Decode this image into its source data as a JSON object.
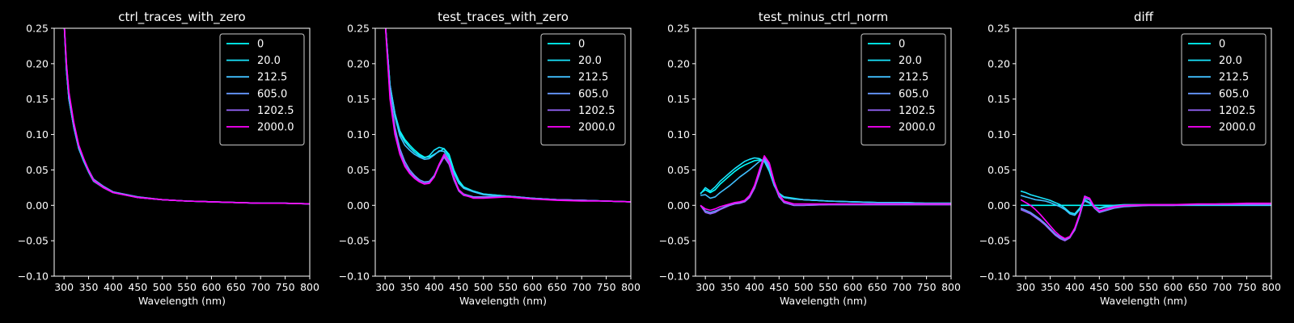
{
  "figure": {
    "background": "#000000",
    "foreground": "#ffffff"
  },
  "series_style": {
    "names": [
      "0",
      "20.0",
      "212.5",
      "605.0",
      "1202.5",
      "2000.0"
    ],
    "colors": [
      "#00ffff",
      "#19e6ff",
      "#40bfff",
      "#6699ff",
      "#9966ff",
      "#ff00ff"
    ]
  },
  "chart_data": [
    {
      "type": "line",
      "title": "ctrl_traces_with_zero",
      "xlabel": "Wavelength (nm)",
      "ylabel": "",
      "xlim": [
        280,
        800
      ],
      "ylim": [
        -0.1,
        0.25
      ],
      "xticks": [
        300,
        350,
        400,
        450,
        500,
        550,
        600,
        650,
        700,
        750,
        800
      ],
      "yticks": [
        -0.1,
        -0.05,
        0.0,
        0.05,
        0.1,
        0.15,
        0.2,
        0.25
      ],
      "ytick_labels": [
        "−0.10",
        "−0.05",
        "0.00",
        "0.05",
        "0.10",
        "0.15",
        "0.20",
        "0.25"
      ],
      "legend": "top-right",
      "x": [
        300,
        305,
        310,
        320,
        330,
        340,
        350,
        360,
        380,
        400,
        450,
        500,
        550,
        600,
        650,
        700,
        750,
        800
      ],
      "series": [
        {
          "name": "0",
          "values": [
            0.26,
            0.19,
            0.15,
            0.11,
            0.08,
            0.063,
            0.048,
            0.035,
            0.025,
            0.018,
            0.011,
            0.008,
            0.006,
            0.005,
            0.004,
            0.003,
            0.003,
            0.002
          ]
        },
        {
          "name": "20.0",
          "values": [
            0.26,
            0.19,
            0.15,
            0.11,
            0.08,
            0.062,
            0.047,
            0.034,
            0.025,
            0.018,
            0.011,
            0.008,
            0.006,
            0.005,
            0.004,
            0.003,
            0.003,
            0.002
          ]
        },
        {
          "name": "212.5",
          "values": [
            0.26,
            0.19,
            0.15,
            0.11,
            0.08,
            0.063,
            0.048,
            0.036,
            0.026,
            0.019,
            0.012,
            0.008,
            0.006,
            0.005,
            0.004,
            0.003,
            0.003,
            0.002
          ]
        },
        {
          "name": "605.0",
          "values": [
            0.26,
            0.195,
            0.155,
            0.112,
            0.082,
            0.065,
            0.05,
            0.037,
            0.027,
            0.019,
            0.012,
            0.008,
            0.006,
            0.005,
            0.004,
            0.003,
            0.003,
            0.002
          ]
        },
        {
          "name": "1202.5",
          "values": [
            0.26,
            0.2,
            0.158,
            0.115,
            0.084,
            0.066,
            0.05,
            0.036,
            0.026,
            0.018,
            0.011,
            0.008,
            0.006,
            0.005,
            0.004,
            0.003,
            0.003,
            0.002
          ]
        },
        {
          "name": "2000.0",
          "values": [
            0.26,
            0.2,
            0.16,
            0.117,
            0.085,
            0.066,
            0.049,
            0.035,
            0.025,
            0.018,
            0.011,
            0.008,
            0.006,
            0.005,
            0.004,
            0.003,
            0.003,
            0.002
          ]
        }
      ]
    },
    {
      "type": "line",
      "title": "test_traces_with_zero",
      "xlabel": "Wavelength (nm)",
      "ylabel": "",
      "xlim": [
        280,
        800
      ],
      "ylim": [
        -0.1,
        0.25
      ],
      "xticks": [
        300,
        350,
        400,
        450,
        500,
        550,
        600,
        650,
        700,
        750,
        800
      ],
      "yticks": [
        -0.1,
        -0.05,
        0.0,
        0.05,
        0.1,
        0.15,
        0.2,
        0.25
      ],
      "ytick_labels": [
        "−0.10",
        "−0.05",
        "0.00",
        "0.05",
        "0.10",
        "0.15",
        "0.20",
        "0.25"
      ],
      "legend": "top-right",
      "x": [
        300,
        310,
        320,
        330,
        340,
        350,
        360,
        370,
        380,
        390,
        400,
        410,
        420,
        430,
        440,
        450,
        460,
        480,
        500,
        550,
        600,
        650,
        700,
        750,
        800
      ],
      "series": [
        {
          "name": "0",
          "values": [
            0.26,
            0.17,
            0.13,
            0.105,
            0.093,
            0.085,
            0.078,
            0.072,
            0.068,
            0.068,
            0.072,
            0.076,
            0.08,
            0.072,
            0.05,
            0.035,
            0.026,
            0.02,
            0.016,
            0.013,
            0.01,
            0.008,
            0.007,
            0.006,
            0.005
          ]
        },
        {
          "name": "20.0",
          "values": [
            0.26,
            0.17,
            0.13,
            0.102,
            0.09,
            0.082,
            0.075,
            0.07,
            0.067,
            0.07,
            0.078,
            0.082,
            0.08,
            0.068,
            0.046,
            0.032,
            0.025,
            0.02,
            0.016,
            0.013,
            0.01,
            0.008,
            0.007,
            0.006,
            0.005
          ]
        },
        {
          "name": "212.5",
          "values": [
            0.26,
            0.17,
            0.125,
            0.098,
            0.085,
            0.078,
            0.072,
            0.068,
            0.065,
            0.066,
            0.071,
            0.077,
            0.076,
            0.064,
            0.045,
            0.031,
            0.024,
            0.019,
            0.015,
            0.012,
            0.01,
            0.008,
            0.007,
            0.006,
            0.005
          ]
        },
        {
          "name": "605.0",
          "values": [
            0.26,
            0.16,
            0.11,
            0.08,
            0.062,
            0.05,
            0.042,
            0.036,
            0.033,
            0.034,
            0.042,
            0.058,
            0.07,
            0.06,
            0.038,
            0.022,
            0.016,
            0.012,
            0.012,
            0.013,
            0.01,
            0.008,
            0.007,
            0.006,
            0.005
          ]
        },
        {
          "name": "1202.5",
          "values": [
            0.26,
            0.155,
            0.105,
            0.075,
            0.058,
            0.047,
            0.04,
            0.034,
            0.031,
            0.032,
            0.04,
            0.056,
            0.068,
            0.058,
            0.036,
            0.02,
            0.014,
            0.011,
            0.011,
            0.012,
            0.009,
            0.008,
            0.007,
            0.006,
            0.005
          ]
        },
        {
          "name": "2000.0",
          "values": [
            0.26,
            0.15,
            0.1,
            0.072,
            0.055,
            0.045,
            0.038,
            0.033,
            0.03,
            0.031,
            0.04,
            0.058,
            0.072,
            0.062,
            0.04,
            0.022,
            0.015,
            0.01,
            0.01,
            0.012,
            0.009,
            0.007,
            0.006,
            0.006,
            0.005
          ]
        }
      ]
    },
    {
      "type": "line",
      "title": "test_minus_ctrl_norm",
      "xlabel": "Wavelength (nm)",
      "ylabel": "",
      "xlim": [
        280,
        800
      ],
      "ylim": [
        -0.1,
        0.25
      ],
      "xticks": [
        300,
        350,
        400,
        450,
        500,
        550,
        600,
        650,
        700,
        750,
        800
      ],
      "yticks": [
        -0.1,
        -0.05,
        0.0,
        0.05,
        0.1,
        0.15,
        0.2,
        0.25
      ],
      "ytick_labels": [
        "−0.10",
        "−0.05",
        "0.00",
        "0.05",
        "0.10",
        "0.15",
        "0.20",
        "0.25"
      ],
      "legend": "top-right",
      "x": [
        290,
        300,
        310,
        320,
        330,
        340,
        350,
        360,
        370,
        380,
        390,
        400,
        410,
        420,
        430,
        440,
        450,
        460,
        480,
        500,
        550,
        600,
        650,
        700,
        750,
        800
      ],
      "series": [
        {
          "name": "0",
          "values": [
            0.017,
            0.022,
            0.018,
            0.022,
            0.03,
            0.036,
            0.042,
            0.048,
            0.053,
            0.057,
            0.06,
            0.063,
            0.064,
            0.062,
            0.05,
            0.03,
            0.017,
            0.012,
            0.01,
            0.008,
            0.006,
            0.005,
            0.004,
            0.004,
            0.003,
            0.003
          ]
        },
        {
          "name": "20.0",
          "values": [
            0.016,
            0.025,
            0.02,
            0.026,
            0.034,
            0.04,
            0.046,
            0.052,
            0.057,
            0.062,
            0.065,
            0.067,
            0.066,
            0.062,
            0.048,
            0.028,
            0.015,
            0.011,
            0.009,
            0.008,
            0.006,
            0.005,
            0.004,
            0.004,
            0.003,
            0.003
          ]
        },
        {
          "name": "212.5",
          "values": [
            0.014,
            0.015,
            0.01,
            0.012,
            0.018,
            0.023,
            0.028,
            0.034,
            0.04,
            0.045,
            0.05,
            0.056,
            0.062,
            0.064,
            0.052,
            0.03,
            0.016,
            0.011,
            0.009,
            0.008,
            0.006,
            0.005,
            0.004,
            0.004,
            0.003,
            0.003
          ]
        },
        {
          "name": "605.0",
          "values": [
            0.0,
            -0.008,
            -0.01,
            -0.008,
            -0.005,
            -0.002,
            0.001,
            0.003,
            0.004,
            0.006,
            0.012,
            0.025,
            0.045,
            0.066,
            0.055,
            0.03,
            0.012,
            0.004,
            0.0,
            0.0,
            0.001,
            0.001,
            0.001,
            0.001,
            0.001,
            0.001
          ]
        },
        {
          "name": "1202.5",
          "values": [
            0.0,
            -0.01,
            -0.012,
            -0.01,
            -0.006,
            -0.003,
            0.0,
            0.002,
            0.003,
            0.005,
            0.011,
            0.024,
            0.044,
            0.068,
            0.058,
            0.032,
            0.013,
            0.004,
            0.0,
            0.0,
            0.001,
            0.001,
            0.001,
            0.001,
            0.001,
            0.001
          ]
        },
        {
          "name": "2000.0",
          "values": [
            0.0,
            -0.005,
            -0.007,
            -0.005,
            -0.002,
            0.0,
            0.002,
            0.004,
            0.005,
            0.007,
            0.014,
            0.028,
            0.05,
            0.07,
            0.06,
            0.034,
            0.015,
            0.006,
            0.002,
            0.002,
            0.002,
            0.002,
            0.002,
            0.002,
            0.002,
            0.002
          ]
        }
      ]
    },
    {
      "type": "line",
      "title": "diff",
      "xlabel": "Wavelength (nm)",
      "ylabel": "",
      "xlim": [
        280,
        800
      ],
      "ylim": [
        -0.1,
        0.25
      ],
      "xticks": [
        300,
        350,
        400,
        450,
        500,
        550,
        600,
        650,
        700,
        750,
        800
      ],
      "yticks": [
        -0.1,
        -0.05,
        0.0,
        0.05,
        0.1,
        0.15,
        0.2,
        0.25
      ],
      "ytick_labels": [
        "−0.10",
        "−0.05",
        "0.00",
        "0.05",
        "0.10",
        "0.15",
        "0.20",
        "0.25"
      ],
      "legend": "top-right",
      "x": [
        290,
        300,
        310,
        320,
        330,
        340,
        350,
        360,
        370,
        380,
        390,
        400,
        410,
        420,
        430,
        440,
        450,
        460,
        480,
        500,
        550,
        600,
        650,
        700,
        750,
        800
      ],
      "series": [
        {
          "name": "0",
          "values": [
            0.0,
            0.0,
            0.0,
            0.0,
            0.0,
            0.0,
            0.0,
            0.0,
            0.0,
            0.0,
            0.0,
            0.0,
            0.0,
            0.0,
            0.0,
            0.0,
            0.0,
            0.0,
            0.0,
            0.0,
            0.0,
            0.0,
            0.0,
            0.0,
            0.0,
            0.0
          ]
        },
        {
          "name": "20.0",
          "values": [
            0.02,
            0.018,
            0.015,
            0.013,
            0.011,
            0.009,
            0.007,
            0.004,
            0.001,
            -0.004,
            -0.01,
            -0.012,
            -0.004,
            0.008,
            0.004,
            -0.002,
            -0.004,
            -0.002,
            0.0,
            0.001,
            0.001,
            0.001,
            0.001,
            0.002,
            0.002,
            0.002
          ]
        },
        {
          "name": "212.5",
          "values": [
            0.014,
            0.012,
            0.01,
            0.008,
            0.007,
            0.006,
            0.004,
            0.001,
            -0.002,
            -0.006,
            -0.012,
            -0.014,
            -0.006,
            0.006,
            0.003,
            -0.003,
            -0.005,
            -0.003,
            -0.001,
            0.0,
            0.001,
            0.001,
            0.001,
            0.002,
            0.002,
            0.002
          ]
        },
        {
          "name": "605.0",
          "values": [
            -0.004,
            -0.007,
            -0.01,
            -0.015,
            -0.02,
            -0.026,
            -0.033,
            -0.04,
            -0.045,
            -0.048,
            -0.045,
            -0.035,
            -0.015,
            0.01,
            0.008,
            -0.004,
            -0.01,
            -0.008,
            -0.004,
            -0.002,
            0.0,
            0.0,
            0.001,
            0.001,
            0.001,
            0.001
          ]
        },
        {
          "name": "1202.5",
          "values": [
            -0.006,
            -0.009,
            -0.012,
            -0.017,
            -0.022,
            -0.028,
            -0.035,
            -0.042,
            -0.047,
            -0.05,
            -0.046,
            -0.034,
            -0.013,
            0.013,
            0.01,
            -0.003,
            -0.009,
            -0.007,
            -0.003,
            -0.001,
            0.0,
            0.0,
            0.001,
            0.001,
            0.001,
            0.001
          ]
        },
        {
          "name": "2000.0",
          "values": [
            0.008,
            0.004,
            0.0,
            -0.006,
            -0.013,
            -0.021,
            -0.029,
            -0.037,
            -0.043,
            -0.047,
            -0.044,
            -0.032,
            -0.012,
            0.012,
            0.01,
            -0.002,
            -0.008,
            -0.006,
            -0.002,
            0.0,
            0.001,
            0.001,
            0.002,
            0.002,
            0.003,
            0.003
          ]
        }
      ]
    }
  ]
}
